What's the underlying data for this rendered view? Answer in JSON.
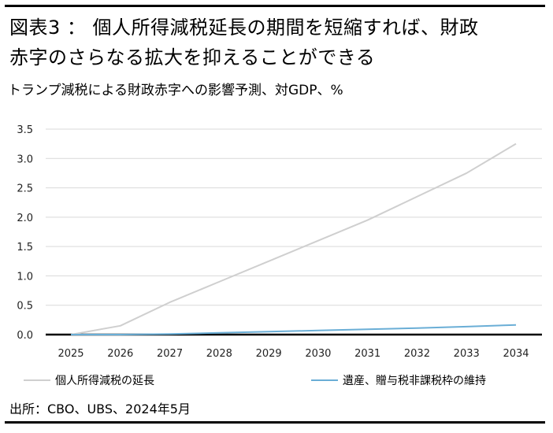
{
  "title_line1": "図表3 ： 個人所得減税延長の期間を短縮すれば、財政",
  "title_line2": "赤字のさらなる拡大を抑えることができる",
  "subtitle": "トランプ減税による財政赤字への影響予測、対GDP、%",
  "source": "出所：CBO、UBS、2024年5月",
  "chart_data": {
    "type": "line",
    "x": [
      "2025",
      "2026",
      "2027",
      "2028",
      "2029",
      "2030",
      "2031",
      "2032",
      "2033",
      "2034"
    ],
    "ylim": [
      0,
      3.5
    ],
    "yticks": [
      "0.0",
      "0.5",
      "1.0",
      "1.5",
      "2.0",
      "2.5",
      "3.0",
      "3.5"
    ],
    "grid": true,
    "legend_position": "bottom",
    "series": [
      {
        "name": "個人所得減税の延長",
        "color": "#cfcfcf",
        "values": [
          0.0,
          0.15,
          0.55,
          0.9,
          1.25,
          1.6,
          1.95,
          2.35,
          2.75,
          3.25
        ]
      },
      {
        "name": "遺産、贈与税非課税枠の維持",
        "color": "#6aaed6",
        "values": [
          0.0,
          0.0,
          0.01,
          0.03,
          0.05,
          0.07,
          0.09,
          0.11,
          0.135,
          0.165
        ]
      }
    ]
  }
}
